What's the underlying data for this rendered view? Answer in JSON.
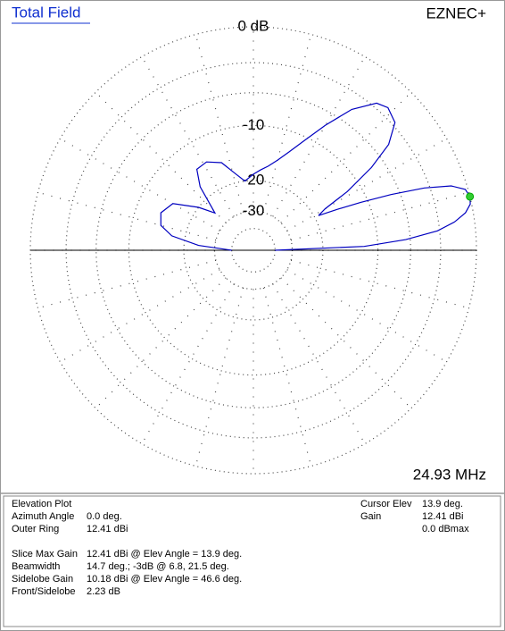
{
  "chart_data": {
    "type": "polar",
    "title": "Total Field",
    "brand": "EZNEC+",
    "frequency": "24.93 MHz",
    "rticks": [
      {
        "value": 0,
        "label": "0 dB"
      },
      -10,
      -20,
      -30
    ],
    "minor_rings": [
      -3,
      -6,
      -40
    ],
    "scale_base": 0.89,
    "color": "#0000c0",
    "series": [
      {
        "name": "Elevation Plot",
        "color": "#0000c0",
        "x": [
          0,
          2,
          4,
          6,
          8,
          10,
          12,
          13.9,
          16,
          18,
          20,
          22,
          24,
          26,
          28,
          30,
          32,
          35,
          38,
          42,
          46.6,
          50,
          55,
          60,
          65,
          70,
          75,
          80,
          85,
          90,
          97,
          103,
          110,
          118,
          125,
          130,
          136,
          142,
          150,
          158,
          165,
          170,
          175,
          180
        ],
        "values": [
          -40,
          -12,
          -6.5,
          -3.2,
          -1.6,
          -0.6,
          -0.1,
          0,
          -0.2,
          -1.2,
          -3.5,
          -7,
          -11,
          -15,
          -19,
          -17,
          -12,
          -7.5,
          -4.5,
          -2.7,
          -2.23,
          -2.6,
          -4.5,
          -7.5,
          -10.5,
          -13,
          -15,
          -16.5,
          -17.5,
          -18.5,
          -20,
          -18,
          -15,
          -13.8,
          -14,
          -17,
          -24.5,
          -20,
          -15,
          -13.8,
          -14.5,
          -17,
          -24,
          -40
        ]
      }
    ],
    "cursor": {
      "angle": 13.9,
      "db": 0,
      "color": "#33cc33"
    }
  },
  "info": {
    "left": [
      [
        "Elevation Plot",
        ""
      ],
      [
        "Azimuth Angle",
        "0.0 deg."
      ],
      [
        "Outer Ring",
        "12.41 dBi"
      ],
      [
        "Slice Max Gain",
        "12.41 dBi @ Elev Angle = 13.9 deg."
      ],
      [
        "Beamwidth",
        "14.7 deg.; -3dB @ 6.8, 21.5 deg."
      ],
      [
        "Sidelobe Gain",
        "10.18 dBi @ Elev Angle = 46.6 deg."
      ],
      [
        "Front/Sidelobe",
        "2.23 dB"
      ]
    ],
    "right": [
      [
        "Cursor Elev",
        "13.9 deg."
      ],
      [
        "Gain",
        "12.41 dBi"
      ],
      [
        "",
        "0.0 dBmax"
      ]
    ]
  }
}
